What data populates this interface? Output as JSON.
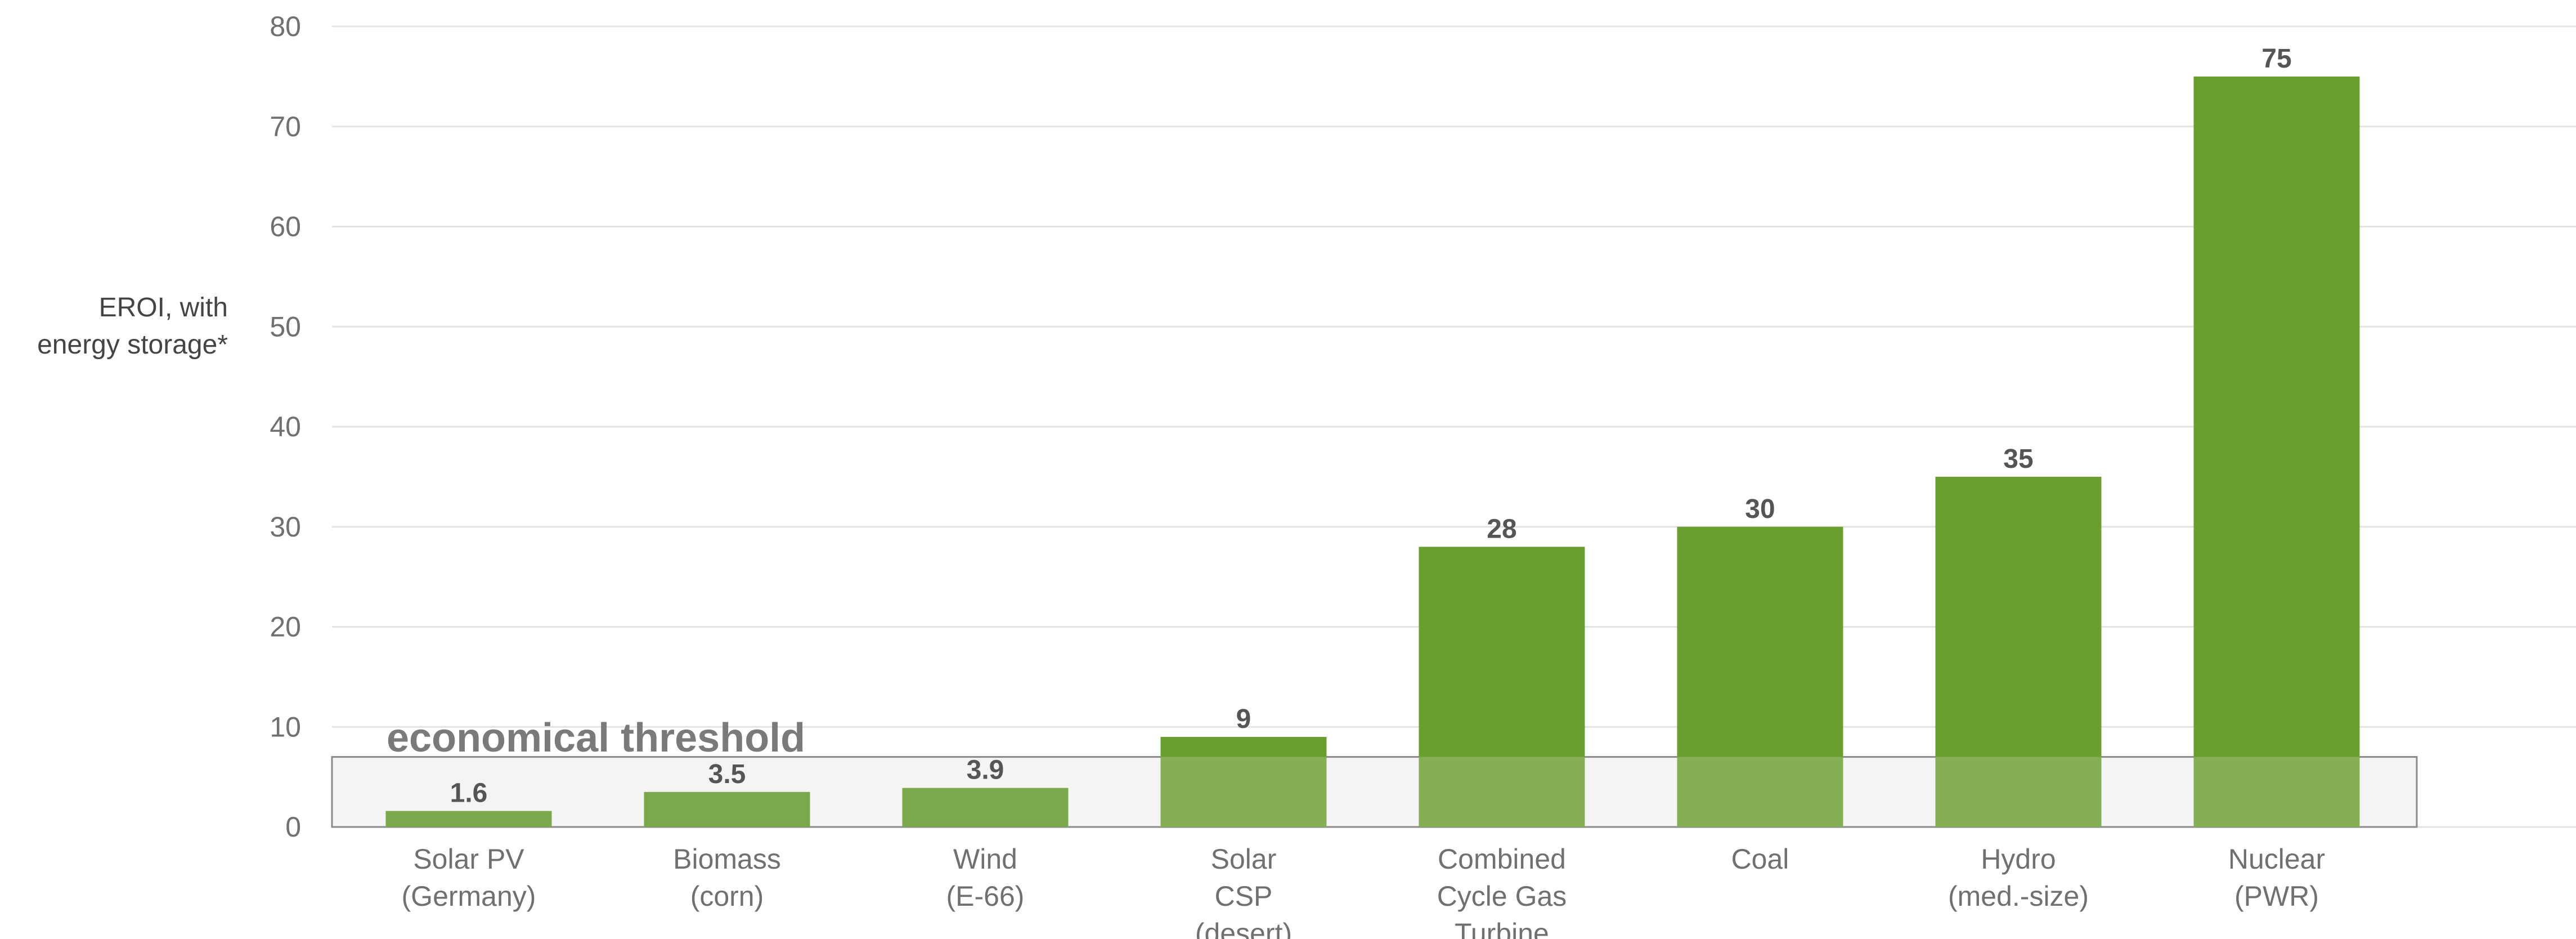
{
  "chart_data": {
    "type": "bar",
    "categories": [
      [
        "Solar PV",
        "(Germany)"
      ],
      [
        "Biomass",
        "(corn)"
      ],
      [
        "Wind",
        "(E-66)"
      ],
      [
        "Solar",
        "CSP",
        "(desert)"
      ],
      [
        "Combined",
        "Cycle Gas",
        "Turbine"
      ],
      [
        "Coal"
      ],
      [
        "Hydro",
        "(med.-size)"
      ],
      [
        "Nuclear",
        "(PWR)"
      ]
    ],
    "values": [
      1.6,
      3.5,
      3.9,
      9,
      28,
      30,
      35,
      75
    ],
    "value_labels": [
      "1.6",
      "3.5",
      "3.9",
      "9",
      "28",
      "30",
      "35",
      "75"
    ],
    "ylabel": [
      "EROI, with",
      "energy storage*"
    ],
    "ylim": [
      0,
      80
    ],
    "yticks": [
      0,
      10,
      20,
      30,
      40,
      50,
      60,
      70,
      80
    ],
    "grid": true,
    "threshold": {
      "label": "economical threshold",
      "value": 7
    },
    "colors": {
      "bar_above": "#6a9e2f",
      "bar_below": "#7aa84a",
      "threshold_fill": "#f4f4f4",
      "threshold_stroke": "#8a8a8a"
    }
  }
}
